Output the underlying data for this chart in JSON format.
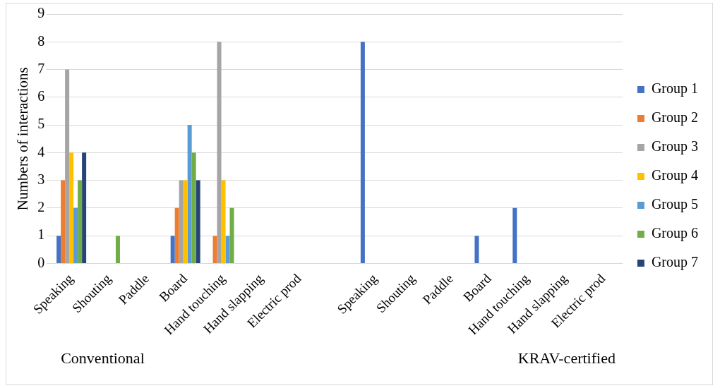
{
  "chart_data": {
    "type": "bar",
    "ylabel": "Numbers of interactions",
    "categories": [
      "Speaking",
      "Shouting",
      "Paddle",
      "Board",
      "Hand touching",
      "Hand slapping",
      "Electric prod",
      null,
      "Speaking",
      "Shouting",
      "Paddle",
      "Board",
      "Hand touching",
      "Hand slapping",
      "Electric prod"
    ],
    "series": [
      {
        "name": "Group 1",
        "color": "#4472c4",
        "values": [
          1,
          0,
          0,
          1,
          0,
          0,
          0,
          null,
          8,
          0,
          0,
          1,
          2,
          0,
          0
        ]
      },
      {
        "name": "Group 2",
        "color": "#ed7d31",
        "values": [
          3,
          0,
          0,
          2,
          1,
          0,
          0,
          null,
          0,
          0,
          0,
          0,
          0,
          0,
          0
        ]
      },
      {
        "name": "Group 3",
        "color": "#a5a5a5",
        "values": [
          7,
          0,
          0,
          3,
          8,
          0,
          0,
          null,
          0,
          0,
          0,
          0,
          0,
          0,
          0
        ]
      },
      {
        "name": "Group 4",
        "color": "#ffc000",
        "values": [
          4,
          0,
          0,
          3,
          3,
          0,
          0,
          null,
          0,
          0,
          0,
          0,
          0,
          0,
          0
        ]
      },
      {
        "name": "Group 5",
        "color": "#5b9bd5",
        "values": [
          2,
          0,
          0,
          5,
          1,
          0,
          0,
          null,
          0,
          0,
          0,
          0,
          0,
          0,
          0
        ]
      },
      {
        "name": "Group 6",
        "color": "#70ad47",
        "values": [
          3,
          1,
          0,
          4,
          2,
          0,
          0,
          null,
          0,
          0,
          0,
          0,
          0,
          0,
          0
        ]
      },
      {
        "name": "Group 7",
        "color": "#264478",
        "values": [
          4,
          0,
          0,
          3,
          0,
          0,
          0,
          null,
          0,
          0,
          0,
          0,
          0,
          0,
          0
        ]
      }
    ],
    "ylim": [
      0,
      9
    ],
    "yticks": [
      0,
      1,
      2,
      3,
      4,
      5,
      6,
      7,
      8,
      9
    ],
    "grid": "y",
    "legend": "right",
    "annotations": [
      "Conventional",
      "KRAV-certified"
    ]
  }
}
